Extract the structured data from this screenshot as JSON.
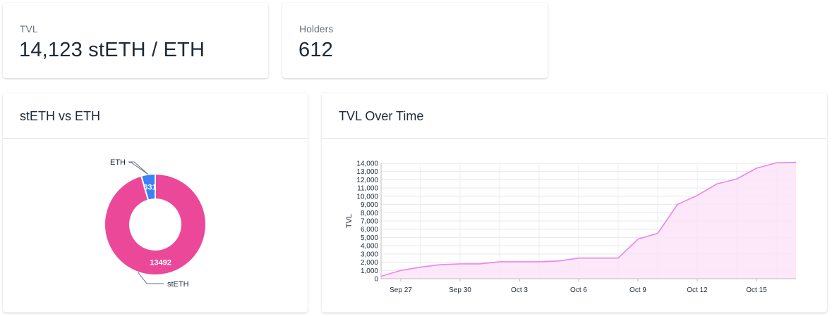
{
  "stats": {
    "tvl": {
      "label": "TVL",
      "value": "14,123 stETH / ETH"
    },
    "holders": {
      "label": "Holders",
      "value": "612"
    }
  },
  "colors": {
    "steth": "#ec4899",
    "eth": "#3b82f6",
    "line": "#ee82ee",
    "area": "#fbe4f7"
  },
  "chart_data": [
    {
      "type": "pie",
      "title": "stETH vs ETH",
      "categories": [
        "stETH",
        "ETH"
      ],
      "values": [
        13492,
        631
      ],
      "labels": [
        "13492",
        "631"
      ],
      "donut": true
    },
    {
      "type": "area",
      "title": "TVL Over Time",
      "xlabel": "",
      "ylabel": "TVL",
      "x": [
        "Sep 26",
        "Sep 27",
        "Sep 28",
        "Sep 29",
        "Sep 30",
        "Oct 1",
        "Oct 2",
        "Oct 3",
        "Oct 4",
        "Oct 5",
        "Oct 6",
        "Oct 7",
        "Oct 8",
        "Oct 9",
        "Oct 10",
        "Oct 11",
        "Oct 12",
        "Oct 13",
        "Oct 14",
        "Oct 15",
        "Oct 16",
        "Oct 17"
      ],
      "x_ticks": [
        "Sep 27",
        "Sep 30",
        "Oct 3",
        "Oct 6",
        "Oct 9",
        "Oct 12",
        "Oct 15"
      ],
      "values": [
        300,
        1000,
        1400,
        1700,
        1800,
        1800,
        2050,
        2050,
        2050,
        2150,
        2500,
        2500,
        2500,
        4800,
        5500,
        9000,
        10100,
        11500,
        12100,
        13400,
        14050,
        14123
      ],
      "yticks": [
        0,
        1000,
        2000,
        3000,
        4000,
        5000,
        6000,
        7000,
        8000,
        9000,
        10000,
        11000,
        12000,
        13000,
        14000
      ],
      "ytick_labels": [
        "0",
        "1,000",
        "2,000",
        "3,000",
        "4,000",
        "5,000",
        "6,000",
        "7,000",
        "8,000",
        "9,000",
        "10,000",
        "11,000",
        "12,000",
        "13,000",
        "14,000"
      ],
      "ylim": [
        0,
        14000
      ],
      "grid": true
    }
  ]
}
